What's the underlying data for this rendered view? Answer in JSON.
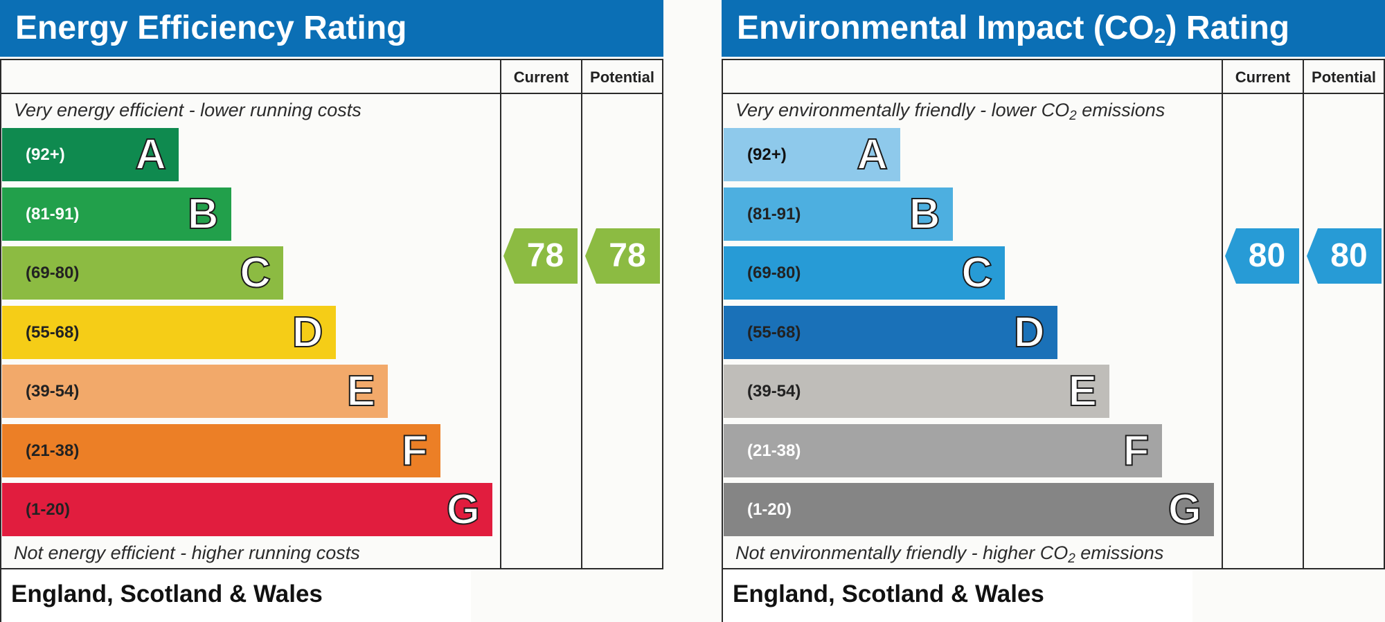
{
  "chart_data": [
    {
      "type": "bar",
      "title": "Energy Efficiency Rating",
      "columns": [
        "Current",
        "Potential"
      ],
      "top_note": "Very energy efficient - lower running costs",
      "bottom_note": "Not energy efficient - higher running costs",
      "region": "England, Scotland & Wales",
      "categories": [
        "A",
        "B",
        "C",
        "D",
        "E",
        "F",
        "G"
      ],
      "ranges": [
        "(92+)",
        "(81-91)",
        "(69-80)",
        "(55-68)",
        "(39-54)",
        "(21-38)",
        "(1-20)"
      ],
      "colors": [
        "#0f8a4f",
        "#22a04b",
        "#8cbb42",
        "#f5cd17",
        "#f2a96a",
        "#ec7f26",
        "#e11d3e"
      ],
      "range_text_colors": [
        "#ffffff",
        "#ffffff",
        "#222222",
        "#222222",
        "#222222",
        "#222222",
        "#222222"
      ],
      "current": 78,
      "potential": 78,
      "indicator_color": "#8cbb42"
    },
    {
      "type": "bar",
      "title": "Environmental Impact (CO2) Rating",
      "columns": [
        "Current",
        "Potential"
      ],
      "top_note": "Very environmentally friendly - lower CO2 emissions",
      "bottom_note": "Not environmentally friendly - higher CO2 emissions",
      "region": "England, Scotland & Wales",
      "categories": [
        "A",
        "B",
        "C",
        "D",
        "E",
        "F",
        "G"
      ],
      "ranges": [
        "(92+)",
        "(81-91)",
        "(69-80)",
        "(55-68)",
        "(39-54)",
        "(21-38)",
        "(1-20)"
      ],
      "colors": [
        "#8ec9eb",
        "#4dafe0",
        "#279bd6",
        "#1a71b8",
        "#bfbdb9",
        "#a4a4a4",
        "#858585"
      ],
      "range_text_colors": [
        "#111111",
        "#222222",
        "#222222",
        "#222222",
        "#222222",
        "#ffffff",
        "#ffffff"
      ],
      "current": 80,
      "potential": 80,
      "indicator_color": "#279bd6"
    }
  ]
}
